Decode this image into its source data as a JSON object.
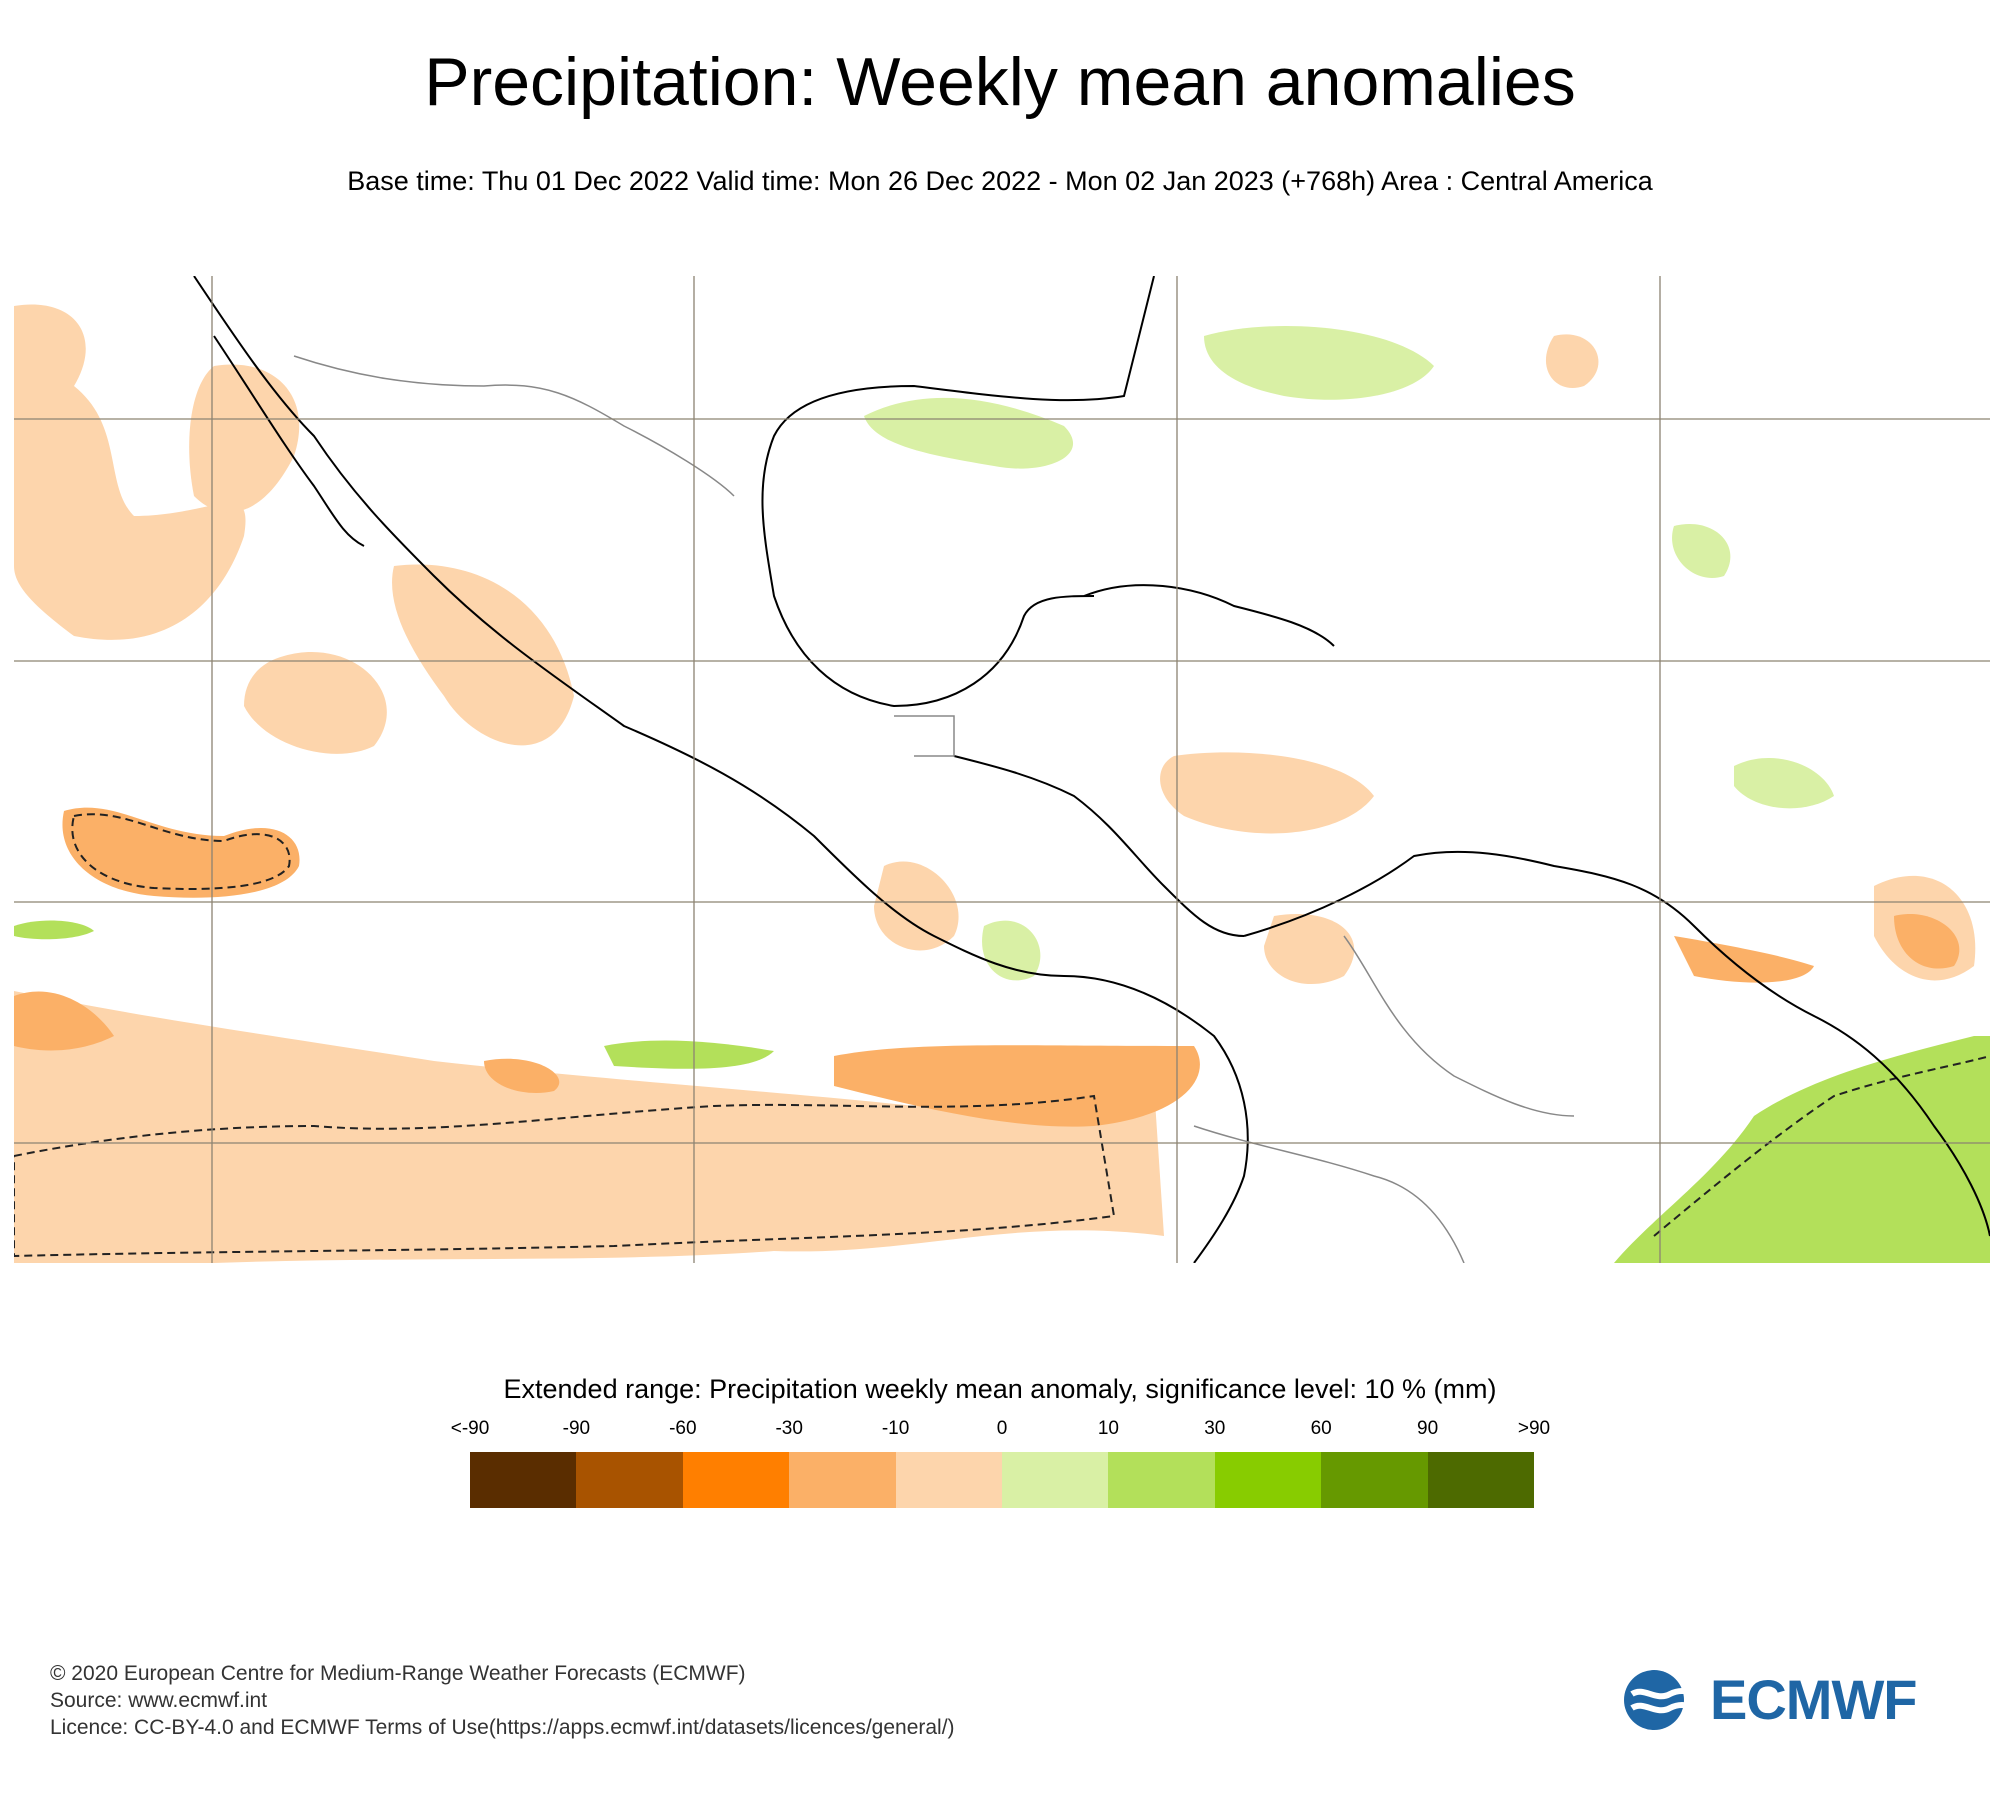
{
  "header": {
    "title": "Precipitation: Weekly mean anomalies",
    "subtitle": "Base time: Thu 01 Dec 2022 Valid time: Mon 26 Dec 2022 - Mon 02 Jan 2023 (+768h) Area : Central America"
  },
  "map": {
    "area": "Central America",
    "colors": {
      "dry_light": "#fdd5ac",
      "dry_medium": "#fbb067",
      "wet_light": "#d9f0a5",
      "wet_medium": "#b3e05a",
      "coast": "#000000",
      "border": "#888888",
      "grid": "#8c8372"
    }
  },
  "legend": {
    "title": "Extended range: Precipitation weekly mean anomaly, significance level: 10 % (mm)",
    "ticks": [
      "<-90",
      "-90",
      "-60",
      "-30",
      "-10",
      "0",
      "10",
      "30",
      "60",
      "90",
      ">90"
    ],
    "colors": [
      "#5a2d00",
      "#a85300",
      "#ff7f00",
      "#fbb067",
      "#fdd5ac",
      "#d9f0a5",
      "#b3e05a",
      "#88cc00",
      "#669900",
      "#4d6a00"
    ]
  },
  "footer": {
    "copyright": "© 2020 European Centre for Medium-Range Weather Forecasts (ECMWF)",
    "source": "Source: www.ecmwf.int",
    "licence": "Licence: CC-BY-4.0 and ECMWF Terms of Use(https://apps.ecmwf.int/datasets/licences/general/)"
  },
  "logo": {
    "text": "ECMWF",
    "color": "#1f66a5"
  }
}
